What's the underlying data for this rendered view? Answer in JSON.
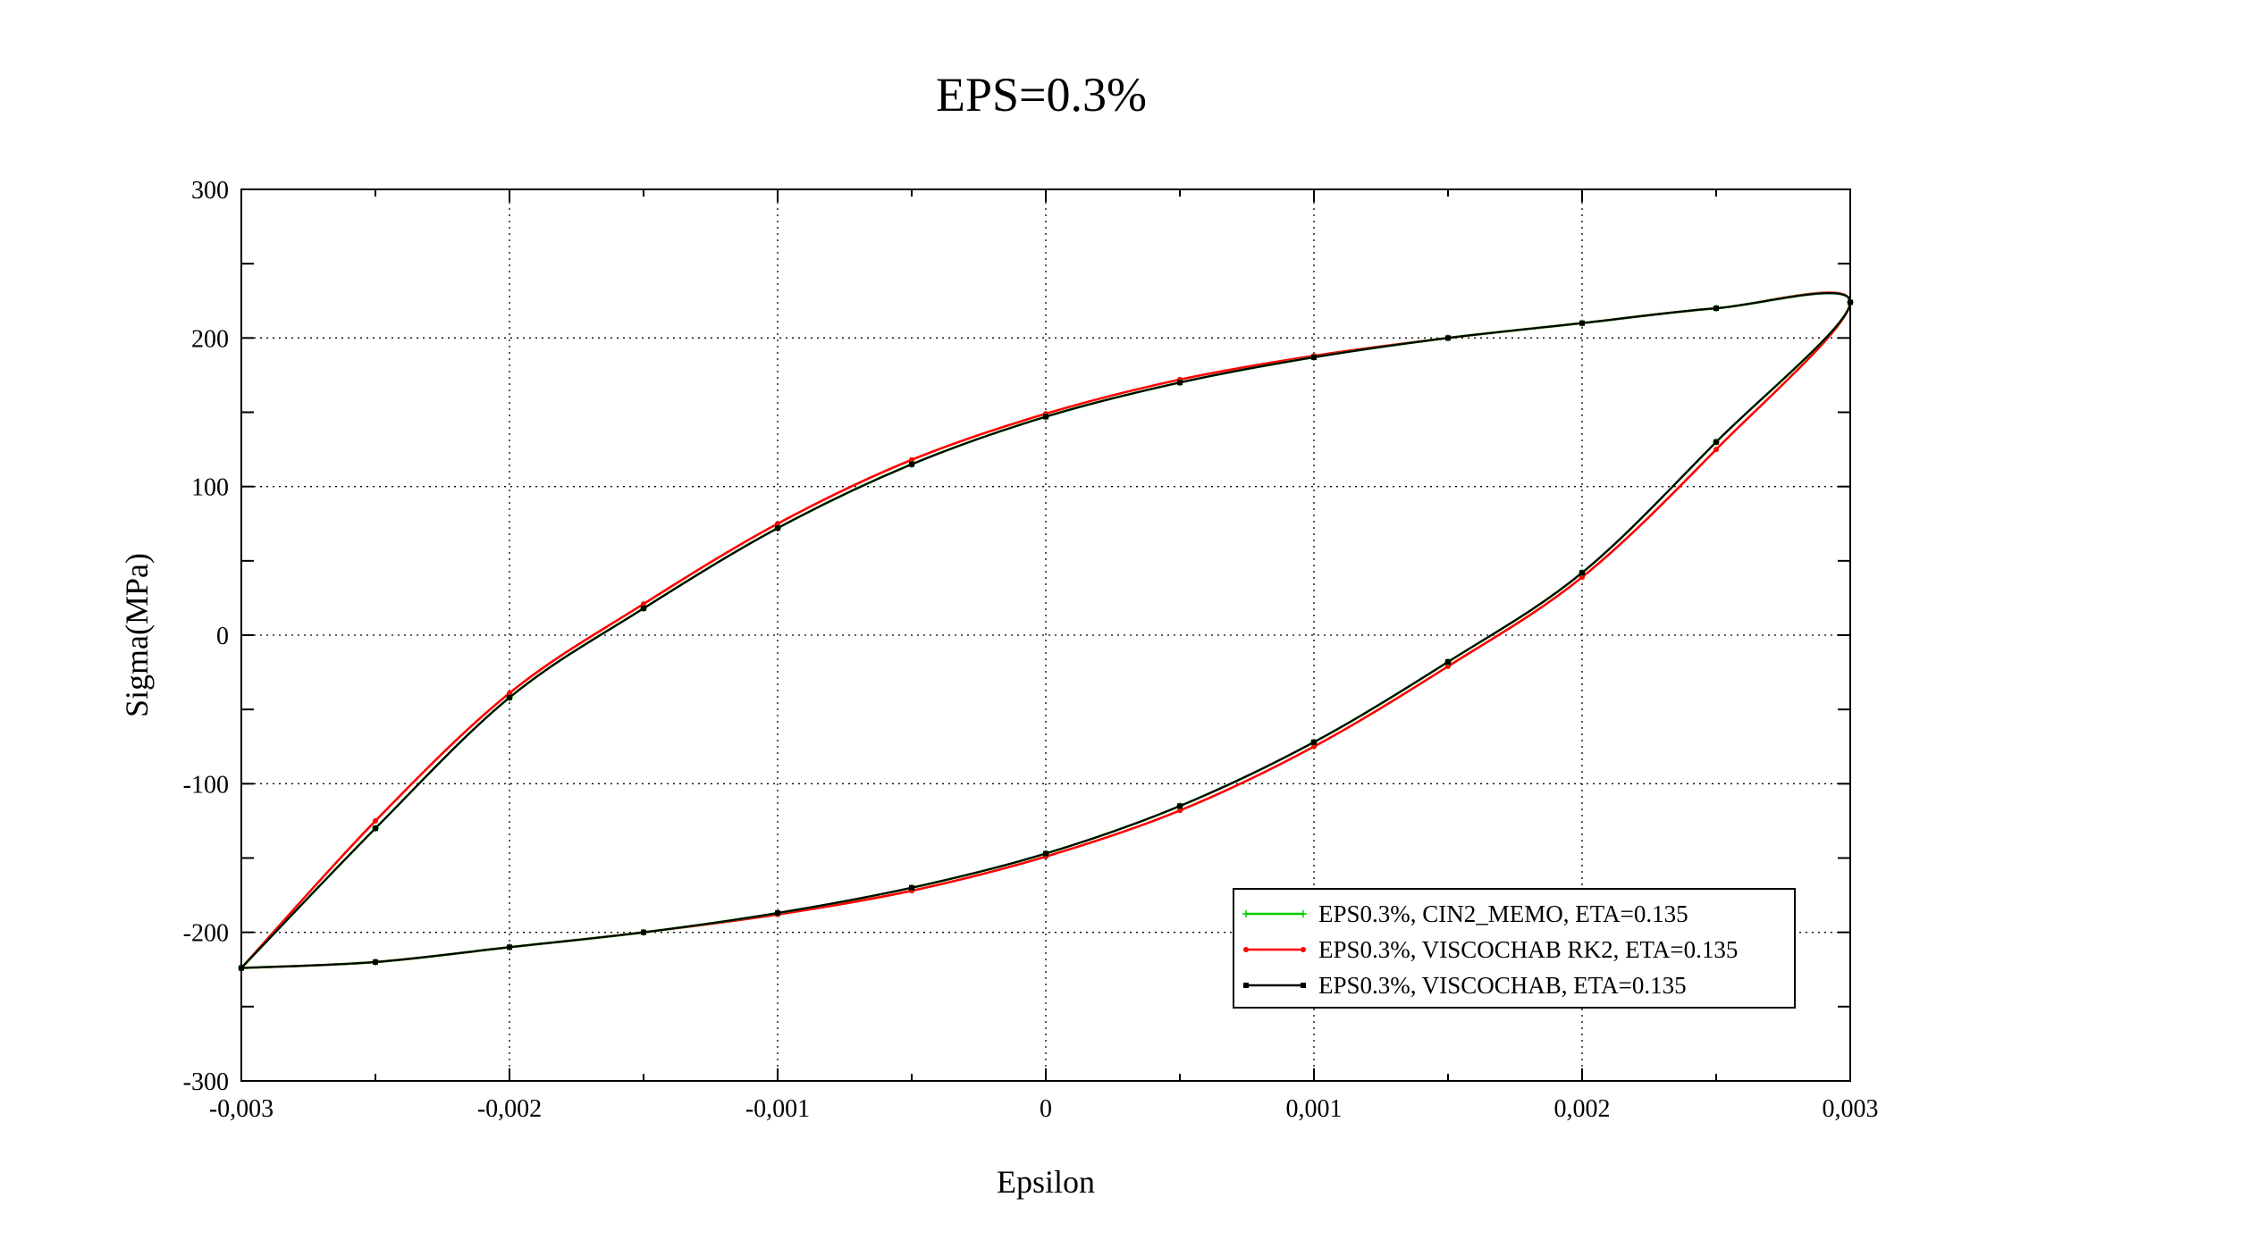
{
  "chart_data": {
    "type": "line",
    "title": "EPS=0.3%",
    "xlabel": "Epsilon",
    "ylabel": "Sigma(MPa)",
    "xlim": [
      -0.003,
      0.003
    ],
    "ylim": [
      -300,
      300
    ],
    "x_ticks": [
      -0.003,
      -0.002,
      -0.001,
      0,
      0.001,
      0.002,
      0.003
    ],
    "x_tick_labels": [
      "-0,003",
      "-0,002",
      "-0,001",
      "0",
      "0,001",
      "0,002",
      "0,003"
    ],
    "y_ticks": [
      -300,
      -200,
      -100,
      0,
      100,
      200,
      300
    ],
    "y_tick_labels": [
      "-300",
      "-200",
      "-100",
      "0",
      "100",
      "200",
      "300"
    ],
    "grid": true,
    "legend_position": "bottom-right",
    "series": [
      {
        "name": "EPS0.3%, CIN2_MEMO, ETA=0.135",
        "color": "#00cc00",
        "marker": "plus",
        "x": [
          -0.003,
          -0.0025,
          -0.002,
          -0.0015,
          -0.001,
          -0.0005,
          0,
          0.0005,
          0.001,
          0.0015,
          0.002,
          0.0025,
          0.003,
          0.0025,
          0.002,
          0.0015,
          0.001,
          0.0005,
          0,
          -0.0005,
          -0.001,
          -0.0015,
          -0.002,
          -0.0025,
          -0.003
        ],
        "y": [
          -224,
          -220,
          -210,
          -200,
          -187,
          -170,
          -147,
          -115,
          -72,
          -18,
          42,
          130,
          224,
          220,
          210,
          200,
          187,
          170,
          147,
          115,
          72,
          18,
          -42,
          -130,
          -224
        ]
      },
      {
        "name": "EPS0.3%, VISCOCHAB RK2, ETA=0.135",
        "color": "#ff0000",
        "marker": "dot",
        "x": [
          -0.003,
          -0.0025,
          -0.002,
          -0.0015,
          -0.001,
          -0.0005,
          0,
          0.0005,
          0.001,
          0.0015,
          0.002,
          0.0025,
          0.003,
          0.0025,
          0.002,
          0.0015,
          0.001,
          0.0005,
          0,
          -0.0005,
          -0.001,
          -0.0015,
          -0.002,
          -0.0025,
          -0.003
        ],
        "y": [
          -224,
          -220,
          -210,
          -200,
          -188,
          -172,
          -149,
          -118,
          -75,
          -21,
          39,
          125,
          224,
          220,
          210,
          200,
          188,
          172,
          149,
          118,
          75,
          21,
          -39,
          -125,
          -224
        ]
      },
      {
        "name": "EPS0.3%, VISCOCHAB, ETA=0.135",
        "color": "#000000",
        "marker": "square",
        "x": [
          -0.003,
          -0.0025,
          -0.002,
          -0.0015,
          -0.001,
          -0.0005,
          0,
          0.0005,
          0.001,
          0.0015,
          0.002,
          0.0025,
          0.003,
          0.0025,
          0.002,
          0.0015,
          0.001,
          0.0005,
          0,
          -0.0005,
          -0.001,
          -0.0015,
          -0.002,
          -0.0025,
          -0.003
        ],
        "y": [
          -224,
          -220,
          -210,
          -200,
          -187,
          -170,
          -147,
          -115,
          -72,
          -18,
          42,
          130,
          224,
          220,
          210,
          200,
          187,
          170,
          147,
          115,
          72,
          18,
          -42,
          -130,
          -224
        ]
      }
    ]
  }
}
